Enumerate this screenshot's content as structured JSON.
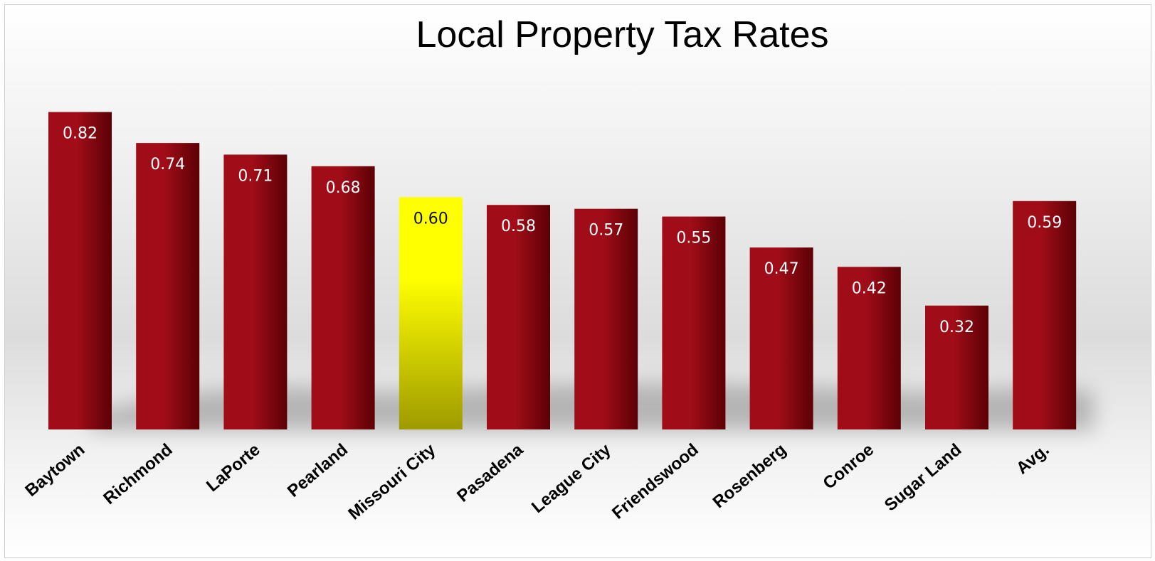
{
  "chart_data": {
    "type": "bar",
    "title": "Local Property Tax Rates",
    "xlabel": "",
    "ylabel": "",
    "categories": [
      "Baytown",
      "Richmond",
      "LaPorte",
      "Pearland",
      "Missouri City",
      "Pasadena",
      "League City",
      "Friendswood",
      "Rosenberg",
      "Conroe",
      "Sugar Land",
      "Avg."
    ],
    "values": [
      0.82,
      0.74,
      0.71,
      0.68,
      0.6,
      0.58,
      0.57,
      0.55,
      0.47,
      0.42,
      0.32,
      0.59
    ],
    "value_labels": [
      "0.82",
      "0.74",
      "0.71",
      "0.68",
      "0.60",
      "0.58",
      "0.57",
      "0.55",
      "0.47",
      "0.42",
      "0.32",
      "0.59"
    ],
    "highlight_category": "Missouri City",
    "ylim": [
      0,
      0.9
    ],
    "grid": false,
    "legend": "none",
    "colors": {
      "bar": "#a00d18",
      "bar_dark": "#5c0006",
      "highlight_top": "#ffff00",
      "highlight_bottom": "#9e9a00"
    }
  }
}
